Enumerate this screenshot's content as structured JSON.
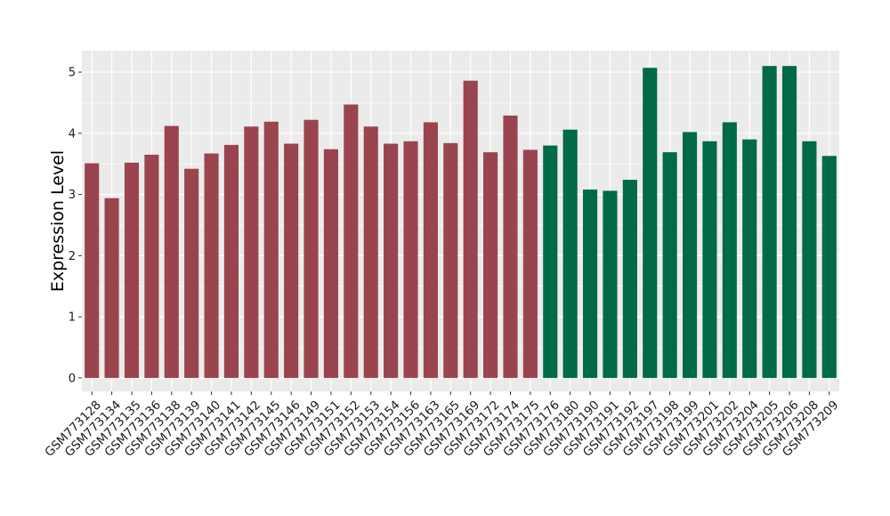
{
  "chart_data": {
    "type": "bar",
    "ylabel": "Expression Level",
    "ylim": [
      -0.22,
      5.35
    ],
    "yticks": [
      0,
      1,
      2,
      3,
      4,
      5
    ],
    "grid": true,
    "legend": "none",
    "colors": {
      "group1": "#9a4450",
      "group2": "#006946",
      "panel": "#ebebeb",
      "grid": "#ffffff"
    },
    "categories": [
      "GSM773128",
      "GSM773134",
      "GSM773135",
      "GSM773136",
      "GSM773138",
      "GSM773139",
      "GSM773140",
      "GSM773141",
      "GSM773142",
      "GSM773145",
      "GSM773146",
      "GSM773149",
      "GSM773151",
      "GSM773152",
      "GSM773153",
      "GSM773154",
      "GSM773156",
      "GSM773163",
      "GSM773165",
      "GSM773169",
      "GSM773172",
      "GSM773174",
      "GSM773175",
      "GSM773176",
      "GSM773180",
      "GSM773190",
      "GSM773191",
      "GSM773192",
      "GSM773197",
      "GSM773198",
      "GSM773199",
      "GSM773201",
      "GSM773202",
      "GSM773204",
      "GSM773205",
      "GSM773206",
      "GSM773208",
      "GSM773209"
    ],
    "values": [
      3.51,
      2.94,
      3.52,
      3.65,
      4.12,
      3.42,
      3.67,
      3.81,
      4.11,
      4.19,
      3.83,
      4.22,
      3.74,
      4.47,
      4.11,
      3.83,
      3.87,
      4.18,
      3.84,
      4.86,
      3.69,
      4.29,
      3.73,
      3.8,
      4.06,
      3.08,
      3.06,
      3.24,
      5.07,
      3.69,
      4.02,
      3.87,
      4.18,
      3.9,
      5.1,
      5.1,
      3.87,
      3.63
    ],
    "groups": [
      1,
      1,
      1,
      1,
      1,
      1,
      1,
      1,
      1,
      1,
      1,
      1,
      1,
      1,
      1,
      1,
      1,
      1,
      1,
      1,
      1,
      1,
      1,
      2,
      2,
      2,
      2,
      2,
      2,
      2,
      2,
      2,
      2,
      2,
      2,
      2,
      2,
      2
    ]
  }
}
